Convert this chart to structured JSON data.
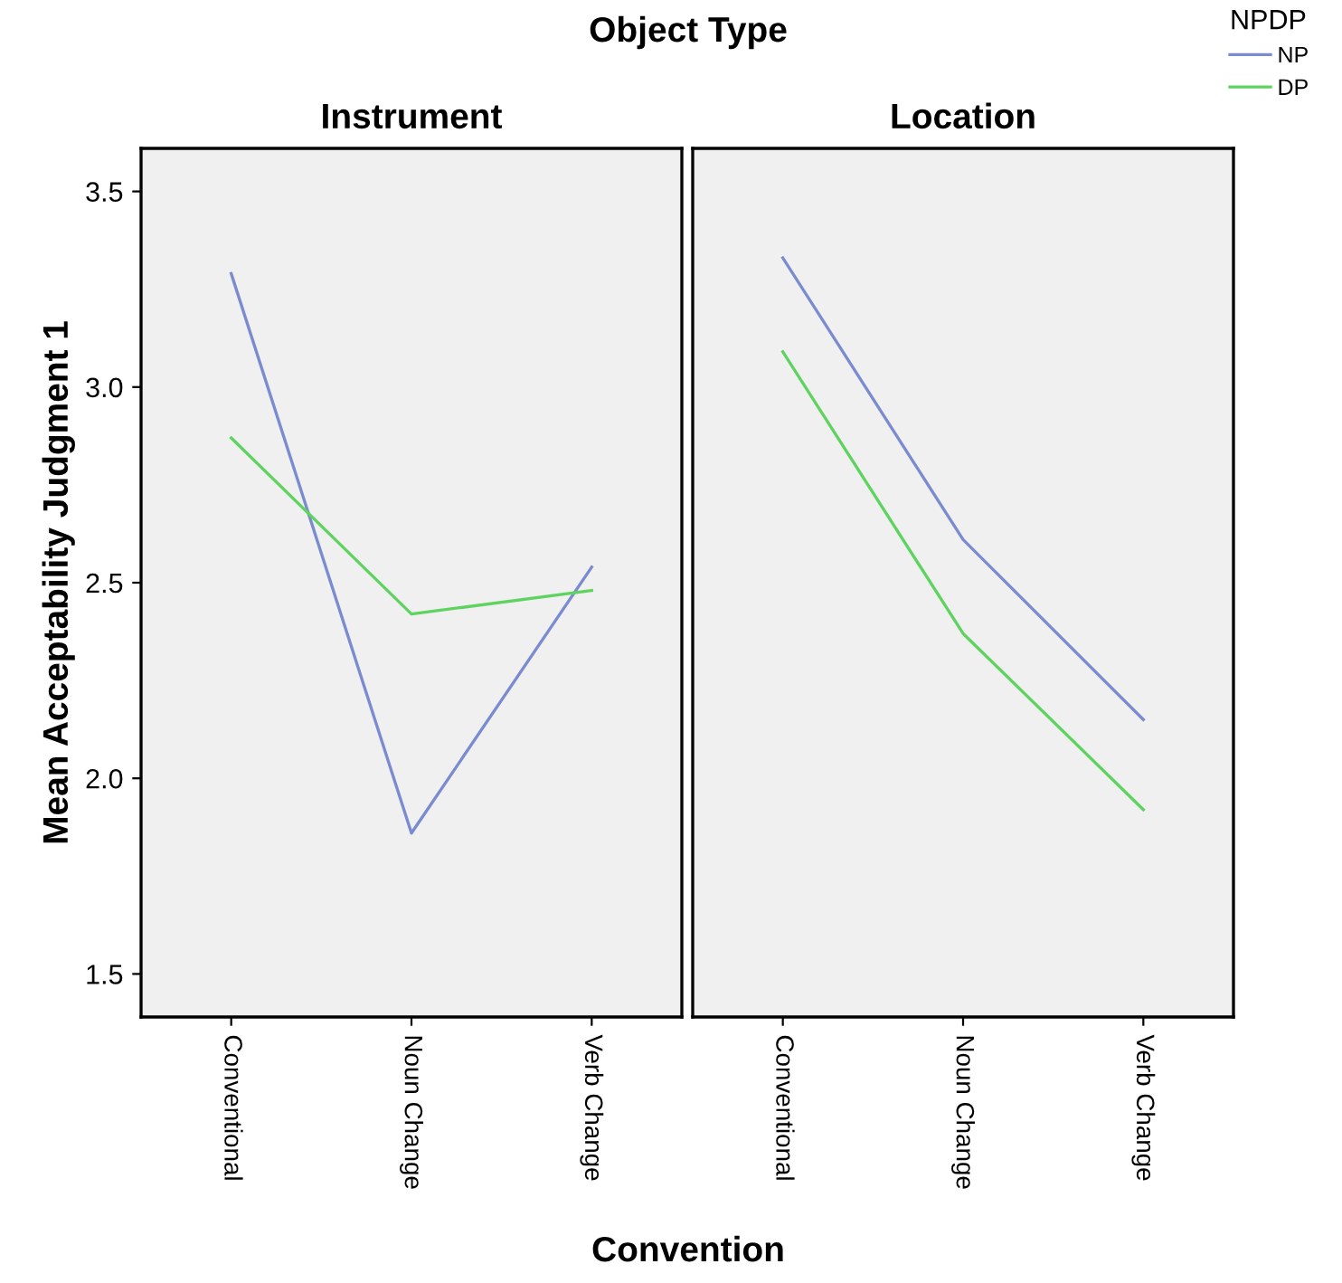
{
  "chart_data": [
    {
      "type": "line",
      "title": "Instrument",
      "subtitle": "Object Type",
      "xlabel": "Convention",
      "ylabel": "Mean Acceptability Judgment 1",
      "legend_title": "NPDP",
      "legend": "top right",
      "categories": [
        "Conventional",
        "Noun Change",
        "Verb Change"
      ],
      "series": [
        {
          "name": "NP",
          "color": "#7b8bd0",
          "values": [
            3.29,
            1.86,
            2.54
          ]
        },
        {
          "name": "DP",
          "color": "#5fd35f",
          "values": [
            2.87,
            2.42,
            2.48
          ]
        }
      ],
      "ylim": [
        1.39,
        3.61
      ],
      "yticks": [
        1.5,
        {
          "value": 2,
          "label": "2.0"
        },
        2.5,
        {
          "value": 3,
          "label": "3.0"
        },
        3.5
      ],
      "grid": false
    },
    {
      "type": "line",
      "title": "Location",
      "tick_labels": "x",
      "categories": [
        "Conventional",
        "Noun Change",
        "Verb Change"
      ],
      "series": [
        {
          "name": "NP",
          "color": "#7b8bd0",
          "values": [
            3.33,
            2.61,
            2.15
          ]
        },
        {
          "name": "DP",
          "color": "#5fd35f",
          "values": [
            3.09,
            2.37,
            1.92
          ]
        }
      ],
      "ylim": [
        1.39,
        3.61
      ],
      "grid": false
    }
  ]
}
